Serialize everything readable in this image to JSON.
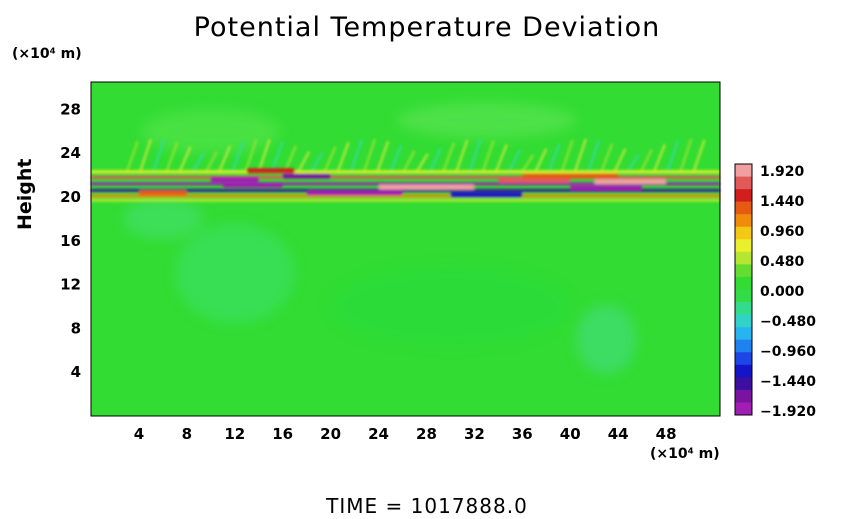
{
  "title": "Potential Temperature Deviation",
  "footer": "TIME = 1017888.0",
  "chart_data": {
    "type": "heatmap",
    "title": "Potential Temperature Deviation",
    "ylabel": "Height",
    "xlabel": "",
    "x_unit": "(×10⁴ m)",
    "y_unit": "(×10⁴ m)",
    "xlim": [
      0,
      52.5
    ],
    "ylim": [
      0,
      30.5
    ],
    "x_ticks": [
      "4",
      "8",
      "12",
      "16",
      "20",
      "24",
      "28",
      "32",
      "36",
      "40",
      "44",
      "48"
    ],
    "y_ticks": [
      "4",
      "8",
      "12",
      "16",
      "20",
      "24",
      "28"
    ],
    "grid": false,
    "background_color": "#32dc32",
    "colorbar": {
      "labels": [
        "1.920",
        "1.440",
        "0.960",
        "0.480",
        "0.000",
        "−0.480",
        "−0.960",
        "−1.440",
        "−1.920"
      ],
      "min": -1.92,
      "max": 1.92,
      "colors": [
        "#f0a0a0",
        "#e05a5a",
        "#d21e1e",
        "#e65a14",
        "#f08c0a",
        "#f5c814",
        "#eaf02c",
        "#b4e632",
        "#64dc32",
        "#32dc32",
        "#32dc46",
        "#32dc8c",
        "#32d2c8",
        "#28b4f0",
        "#1e82f0",
        "#1e46e6",
        "#1414c8",
        "#3c0fa0",
        "#7814a0",
        "#a01eb4"
      ]
    },
    "bands": [
      {
        "y": 21.2,
        "value": -1.8
      },
      {
        "y": 21.8,
        "value": 1.6
      },
      {
        "y": 20.6,
        "value": -1.4
      },
      {
        "y": 20.1,
        "value": 1.0
      },
      {
        "y": 22.3,
        "value": 0.6
      },
      {
        "y": 19.7,
        "value": 0.4
      }
    ]
  }
}
